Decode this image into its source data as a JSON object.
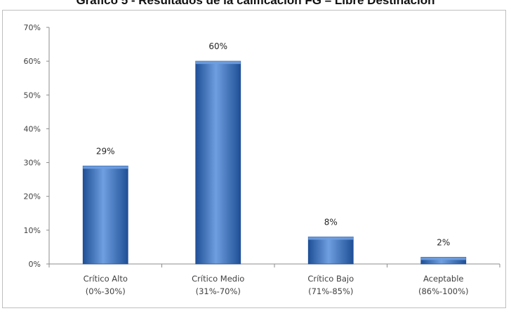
{
  "chart_data": {
    "type": "bar",
    "title": "Gráfico 5 - Resultados de la calificación FG – Libre Destinación",
    "categories": [
      [
        "Crítico Alto",
        "(0%-30%)"
      ],
      [
        "Crítico Medio",
        "(31%-70%)"
      ],
      [
        "Crítico Bajo",
        "(71%-85%)"
      ],
      [
        "Aceptable",
        "(86%-100%)"
      ]
    ],
    "values": [
      29,
      60,
      8,
      2
    ],
    "data_labels": [
      "29%",
      "60%",
      "8%",
      "2%"
    ],
    "yticks": [
      "0%",
      "10%",
      "20%",
      "30%",
      "40%",
      "50%",
      "60%",
      "70%"
    ],
    "ylim": [
      0,
      70
    ],
    "xlabel": "",
    "ylabel": "",
    "grid": false,
    "legend": "none",
    "colors": {
      "bar_fill_light": "#6f9fe0",
      "bar_fill_mid": "#3d77c7",
      "bar_fill_dark": "#1f4f96",
      "axis": "#8c8c8c",
      "text": "#404040"
    }
  }
}
